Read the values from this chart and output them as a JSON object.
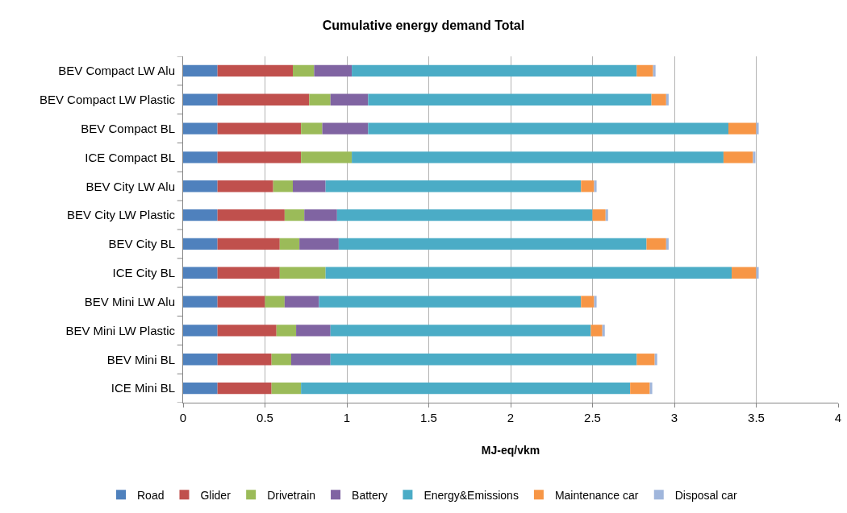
{
  "chart_data": {
    "type": "bar",
    "orientation": "horizontal",
    "stacked": true,
    "title": "Cumulative energy demand Total",
    "xlabel": "MJ-eq/vkm",
    "categories": [
      "BEV Compact LW Alu",
      "BEV Compact LW Plastic",
      "BEV Compact BL",
      "ICE Compact BL",
      "BEV City LW Alu",
      "BEV City LW Plastic",
      "BEV City BL",
      "ICE City BL",
      "BEV Mini LW Alu",
      "BEV Mini LW Plastic",
      "BEV Mini BL",
      "ICE Mini BL"
    ],
    "series": [
      {
        "name": "Road",
        "color": "#4f81bd",
        "values": [
          0.21,
          0.21,
          0.21,
          0.21,
          0.21,
          0.21,
          0.21,
          0.21,
          0.21,
          0.21,
          0.21,
          0.21
        ]
      },
      {
        "name": "Glider",
        "color": "#c0504d",
        "values": [
          0.46,
          0.56,
          0.51,
          0.51,
          0.34,
          0.41,
          0.38,
          0.38,
          0.29,
          0.36,
          0.33,
          0.33
        ]
      },
      {
        "name": "Drivetrain",
        "color": "#9bbb59",
        "values": [
          0.13,
          0.13,
          0.13,
          0.31,
          0.12,
          0.12,
          0.12,
          0.28,
          0.12,
          0.12,
          0.12,
          0.18
        ]
      },
      {
        "name": "Battery",
        "color": "#8064a2",
        "values": [
          0.23,
          0.23,
          0.28,
          0,
          0.2,
          0.2,
          0.24,
          0,
          0.21,
          0.21,
          0.24,
          0
        ]
      },
      {
        "name": "Energy&Emissions",
        "color": "#4bacc6",
        "values": [
          1.74,
          1.73,
          2.2,
          2.27,
          1.56,
          1.56,
          1.88,
          2.48,
          1.6,
          1.59,
          1.87,
          2.01
        ]
      },
      {
        "name": "Maintenance car",
        "color": "#f79646",
        "values": [
          0.1,
          0.09,
          0.17,
          0.18,
          0.08,
          0.08,
          0.12,
          0.15,
          0.08,
          0.07,
          0.11,
          0.12
        ]
      },
      {
        "name": "Disposal car",
        "color": "#a0b6dc",
        "values": [
          0.015,
          0.015,
          0.015,
          0.015,
          0.015,
          0.015,
          0.015,
          0.015,
          0.015,
          0.015,
          0.015,
          0.015
        ]
      }
    ],
    "xlim": [
      0,
      4
    ],
    "xticks": [
      0,
      0.5,
      1,
      1.5,
      2,
      2.5,
      3,
      3.5,
      4
    ],
    "grid": "x",
    "legend": "bottom"
  }
}
